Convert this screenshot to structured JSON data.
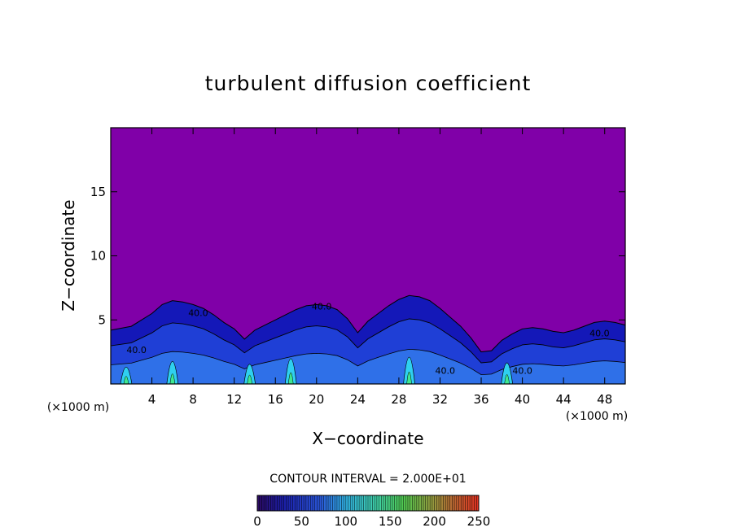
{
  "chart_data": {
    "type": "heatmap",
    "title": "turbulent diffusion coefficient",
    "xlabel": "X−coordinate",
    "ylabel": "Z−coordinate",
    "x_unit_label_left": "(×1000 m)",
    "x_unit_label_right": "(×1000 m)",
    "xlim": [
      0,
      50
    ],
    "ylim": [
      0,
      20
    ],
    "x_ticks": [
      4,
      8,
      12,
      16,
      20,
      24,
      28,
      32,
      36,
      40,
      44,
      48
    ],
    "y_ticks": [
      5,
      10,
      15
    ],
    "contour_interval_label": "CONTOUR INTERVAL = 2.000E+01",
    "contour_interval": 20,
    "colorbar": {
      "min": 0,
      "max": 250,
      "ticks": [
        0,
        50,
        100,
        150,
        200,
        250
      ]
    },
    "contour_labels": [
      "40.0",
      "40.0",
      "40.0",
      "40.0",
      "40.0",
      "40.0"
    ],
    "background_value": 0,
    "cloud_top_profile": {
      "x": [
        0,
        2,
        4,
        5,
        6,
        7,
        8,
        9,
        10,
        11,
        12,
        13,
        14,
        15,
        16,
        17,
        18,
        19,
        20,
        21,
        22,
        23,
        24,
        25,
        26,
        27,
        28,
        29,
        30,
        31,
        32,
        33,
        34,
        35,
        36,
        37,
        38,
        39,
        40,
        41,
        42,
        43,
        44,
        45,
        46,
        47,
        48,
        49,
        50
      ],
      "z": [
        4.2,
        4.5,
        5.5,
        6.2,
        6.5,
        6.4,
        6.2,
        5.9,
        5.4,
        4.8,
        4.3,
        3.5,
        4.2,
        4.6,
        5.0,
        5.4,
        5.8,
        6.1,
        6.2,
        6.1,
        5.8,
        5.1,
        4.0,
        4.9,
        5.5,
        6.1,
        6.6,
        6.9,
        6.8,
        6.5,
        5.9,
        5.2,
        4.5,
        3.6,
        2.5,
        2.6,
        3.4,
        3.9,
        4.3,
        4.4,
        4.3,
        4.1,
        4.0,
        4.2,
        4.5,
        4.8,
        4.9,
        4.8,
        4.6
      ]
    },
    "colors": {
      "background": "#8000a8",
      "plot_border": "#000000",
      "deep_blue": "#1418b8",
      "blue": "#1f3fd6",
      "light_blue": "#2f70e8",
      "cyan": "#2fd0f0",
      "green": "#40e890"
    }
  }
}
